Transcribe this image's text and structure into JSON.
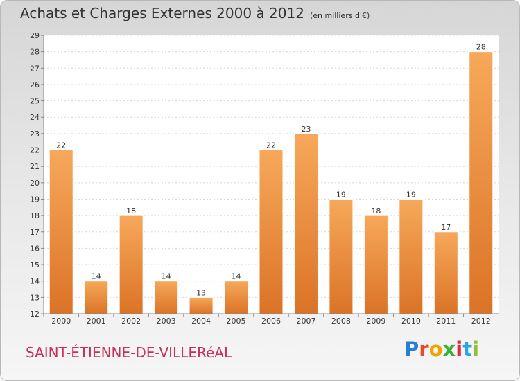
{
  "header": {
    "title": "Achats et Charges Externes 2000 à 2012",
    "unit": "(en milliers d'€)"
  },
  "footer": {
    "commune": "SAINT-ÉTIENNE-DE-VILLERéAL",
    "brand_letters": [
      "P",
      "r",
      "o",
      "x",
      "i",
      "t",
      "i"
    ],
    "brand_colors": [
      "#2a7fd0",
      "#e84a2c",
      "#f2a200",
      "#3cb035",
      "#e2263f",
      "#2aa6df",
      "#8fc03a"
    ]
  },
  "colors": {
    "bar_top": "#f7a85a",
    "bar_bottom": "#db7326"
  },
  "chart_data": {
    "type": "bar",
    "title": "Achats et Charges Externes 2000 à 2012",
    "subtitle": "(en milliers d'€)",
    "xlabel": "",
    "ylabel": "",
    "categories": [
      "2000",
      "2001",
      "2002",
      "2003",
      "2004",
      "2005",
      "2006",
      "2007",
      "2008",
      "2009",
      "2010",
      "2011",
      "2012"
    ],
    "values": [
      22,
      14,
      18,
      14,
      13,
      14,
      22,
      23,
      19,
      18,
      19,
      17,
      28
    ],
    "ylim": [
      12,
      29
    ],
    "yticks": [
      12,
      13,
      14,
      15,
      16,
      17,
      18,
      19,
      20,
      21,
      22,
      23,
      24,
      25,
      26,
      27,
      28,
      29
    ],
    "grid": true,
    "legend": "none"
  }
}
